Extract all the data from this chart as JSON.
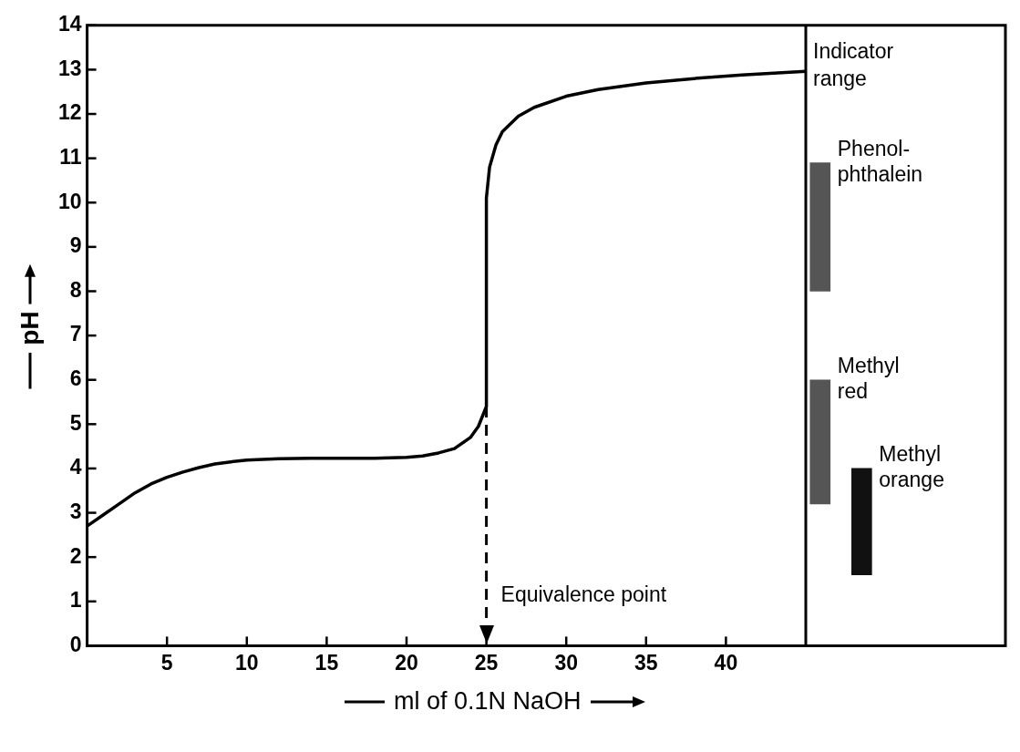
{
  "chart_data": {
    "type": "line",
    "xlabel": "ml of 0.1N NaOH",
    "ylabel": "pH",
    "xlim": [
      0,
      57.5
    ],
    "ylim": [
      0,
      14
    ],
    "xticks": [
      5,
      10,
      15,
      20,
      25,
      30,
      35,
      40
    ],
    "yticks": [
      0,
      1,
      2,
      3,
      4,
      5,
      6,
      7,
      8,
      9,
      10,
      11,
      12,
      13,
      14
    ],
    "series": [
      {
        "type": "bar",
        "name": "Phenol-\nphthalein",
        "color": "#555555",
        "x": [
          45.9
        ],
        "base": [
          8.0
        ],
        "values": [
          2.9
        ]
      },
      {
        "type": "bar",
        "name": "Methyl\nred",
        "color": "#555555",
        "x": [
          45.9
        ],
        "base": [
          3.2
        ],
        "values": [
          2.8
        ]
      },
      {
        "type": "bar",
        "name": "Methyl\norange",
        "color": "#111111",
        "x": [
          48.5
        ],
        "base": [
          1.6
        ],
        "values": [
          2.4
        ]
      },
      {
        "color": "#000000",
        "x": [
          0,
          1,
          2,
          3,
          4,
          5,
          6,
          7,
          8,
          9,
          10,
          12,
          14,
          16,
          18,
          20,
          21,
          22,
          23,
          24,
          24.5,
          25,
          25,
          25.2,
          25.6,
          26,
          27,
          28,
          30,
          32,
          35,
          38,
          41,
          45
        ],
        "values": [
          2.7,
          2.95,
          3.2,
          3.45,
          3.65,
          3.8,
          3.92,
          4.02,
          4.1,
          4.15,
          4.19,
          4.22,
          4.23,
          4.23,
          4.23,
          4.25,
          4.28,
          4.35,
          4.45,
          4.7,
          4.95,
          5.4,
          10.1,
          10.8,
          11.3,
          11.6,
          11.95,
          12.15,
          12.4,
          12.55,
          12.7,
          12.8,
          12.88,
          12.96
        ]
      }
    ],
    "ref_lines": [
      {
        "axis": "x",
        "value": 25,
        "label": "Equivalence point",
        "color": "#000000",
        "line_style": "dashed"
      },
      {
        "axis": "x",
        "value": 45,
        "color": "#000000",
        "line_style": "solid"
      }
    ],
    "legend_title": "Indicator\nrange"
  }
}
